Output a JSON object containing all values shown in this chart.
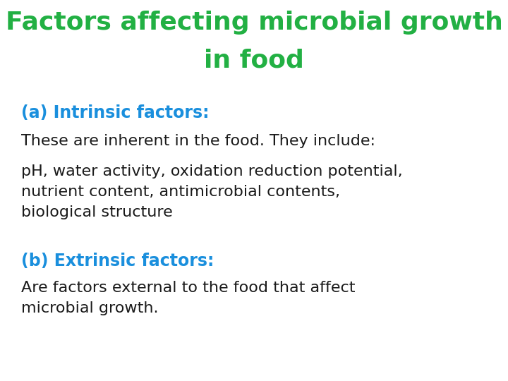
{
  "title_line1": "Factors affecting microbial growth",
  "title_line2": "in food",
  "title_color": "#22b043",
  "title_fontsize": 26,
  "title_fontweight": "bold",
  "heading_a": "(a) Intrinsic factors:",
  "heading_b": "(b) Extrinsic factors:",
  "heading_color": "#1a8fdd",
  "heading_fontsize": 17,
  "heading_fontweight": "bold",
  "body_color": "#1a1a1a",
  "body_fontsize": 16,
  "text_a1": "These are inherent in the food. They include:",
  "text_a2": "pH, water activity, oxidation reduction potential,\nnutrient content, antimicrobial contents,\nbiological structure",
  "text_b1": "Are factors external to the food that affect\nmicrobial growth.",
  "background_color": "#ffffff",
  "figsize": [
    7.2,
    5.4
  ],
  "dpi": 100
}
